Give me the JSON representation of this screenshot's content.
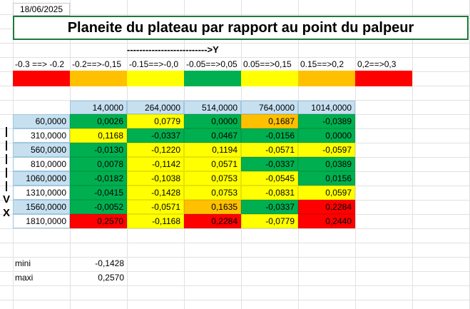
{
  "sheet": {
    "date": "18/06/2025",
    "title": "Planeite du plateau par rapport au point du palpeur",
    "y_axis_label": "-------------------------->Y",
    "x_axis_letters": [
      "|",
      "|",
      "|",
      "|",
      "|",
      "V",
      "X"
    ]
  },
  "legend": {
    "ranges": [
      {
        "label": "-0.3 ==> -0.2",
        "color": "#ff0000"
      },
      {
        "label": "-0.2==>-0,15",
        "color": "#ffc000"
      },
      {
        "label": "-0.15==>-0,0",
        "color": "#ffff00"
      },
      {
        "label": "-0.05==>0,05",
        "color": "#00b050"
      },
      {
        "label": "0.05==>0,15",
        "color": "#ffff00"
      },
      {
        "label": "0.15==>0,2",
        "color": "#ffc000"
      },
      {
        "label": "0,2==>0,3",
        "color": "#ff0000"
      }
    ]
  },
  "table": {
    "columns": [
      "14,0000",
      "264,0000",
      "514,0000",
      "764,0000",
      "1014,0000"
    ],
    "rows": [
      {
        "x": "60,0000",
        "values": [
          "0,0026",
          "0,0779",
          "0,0000",
          "0,1687",
          "-0,0389"
        ],
        "colors": [
          "#00b050",
          "#ffff00",
          "#00b050",
          "#ffc000",
          "#00b050"
        ]
      },
      {
        "x": "310,0000",
        "values": [
          "0,1168",
          "-0,0337",
          "0,0467",
          "-0,0156",
          "0,0000"
        ],
        "colors": [
          "#ffff00",
          "#00b050",
          "#00b050",
          "#00b050",
          "#00b050"
        ]
      },
      {
        "x": "560,0000",
        "values": [
          "-0,0130",
          "-0,1220",
          "0,1194",
          "-0,0571",
          "-0,0597"
        ],
        "colors": [
          "#00b050",
          "#ffff00",
          "#ffff00",
          "#ffff00",
          "#ffff00"
        ]
      },
      {
        "x": "810,0000",
        "values": [
          "0,0078",
          "-0,1142",
          "0,0571",
          "-0,0337",
          "0,0389"
        ],
        "colors": [
          "#00b050",
          "#ffff00",
          "#ffff00",
          "#00b050",
          "#00b050"
        ]
      },
      {
        "x": "1060,0000",
        "values": [
          "-0,0182",
          "-0,1038",
          "0,0753",
          "-0,0545",
          "0,0156"
        ],
        "colors": [
          "#00b050",
          "#ffff00",
          "#ffff00",
          "#ffff00",
          "#00b050"
        ]
      },
      {
        "x": "1310,0000",
        "values": [
          "-0,0415",
          "-0,1428",
          "0,0753",
          "-0,0831",
          "0,0597"
        ],
        "colors": [
          "#00b050",
          "#ffff00",
          "#ffff00",
          "#ffff00",
          "#ffff00"
        ]
      },
      {
        "x": "1560,0000",
        "values": [
          "-0,0052",
          "-0,0571",
          "0,1635",
          "-0,0337",
          "0,2284"
        ],
        "colors": [
          "#00b050",
          "#ffff00",
          "#ffc000",
          "#00b050",
          "#ff0000"
        ]
      },
      {
        "x": "1810,0000",
        "values": [
          "0,2570",
          "-0,1168",
          "0,2284",
          "-0,0779",
          "0,2440"
        ],
        "colors": [
          "#ff0000",
          "#ffff00",
          "#ff0000",
          "#ffff00",
          "#ff0000"
        ]
      }
    ]
  },
  "stats": {
    "mini_label": "mini",
    "mini_value": "-0,1428",
    "maxi_label": "maxi",
    "maxi_value": "0,2570"
  }
}
